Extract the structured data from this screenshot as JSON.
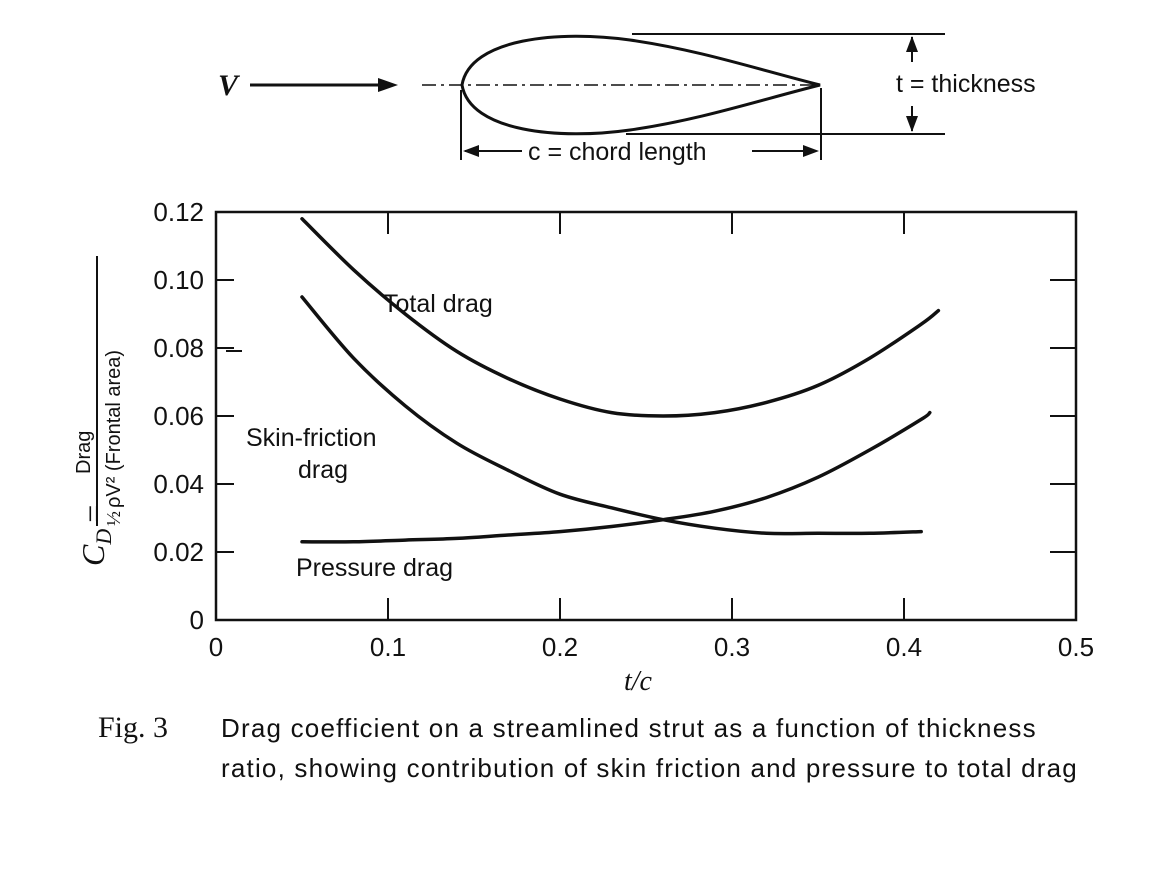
{
  "diagram": {
    "velocity_label": "V",
    "thickness_label": "t = thickness",
    "chord_label": "c = chord length"
  },
  "chart_data": {
    "type": "line",
    "xlabel": "t/c",
    "ylabel_prefix": "C",
    "ylabel_subscript": "D",
    "ylabel_eq": "=",
    "ylabel_numerator": "Drag",
    "ylabel_denominator_half": "½",
    "ylabel_denominator": "ρV² (Frontal area)",
    "xlim": [
      0,
      0.5
    ],
    "ylim": [
      0,
      0.12
    ],
    "x_ticks": [
      0,
      0.1,
      0.2,
      0.3,
      0.4,
      0.5
    ],
    "x_tick_labels": [
      "0",
      "0.1",
      "0.2",
      "0.3",
      "0.4",
      "0.5"
    ],
    "y_ticks": [
      0,
      0.02,
      0.04,
      0.06,
      0.08,
      0.1,
      0.12
    ],
    "y_tick_labels": [
      "0",
      "0.02",
      "0.04",
      "0.06",
      "0.08",
      "0.10",
      "0.12"
    ],
    "grid": false,
    "series": [
      {
        "name": "Total drag",
        "x": [
          0.05,
          0.08,
          0.11,
          0.14,
          0.17,
          0.2,
          0.23,
          0.26,
          0.29,
          0.32,
          0.35,
          0.38,
          0.41,
          0.42
        ],
        "y": [
          0.118,
          0.103,
          0.09,
          0.079,
          0.071,
          0.065,
          0.061,
          0.06,
          0.061,
          0.064,
          0.069,
          0.077,
          0.087,
          0.091
        ]
      },
      {
        "name": "Skin-friction drag",
        "x": [
          0.05,
          0.08,
          0.11,
          0.14,
          0.17,
          0.2,
          0.23,
          0.26,
          0.29,
          0.32,
          0.35,
          0.38,
          0.41
        ],
        "y": [
          0.095,
          0.077,
          0.063,
          0.052,
          0.044,
          0.037,
          0.033,
          0.0295,
          0.027,
          0.0255,
          0.0255,
          0.0255,
          0.026
        ]
      },
      {
        "name": "Pressure drag",
        "x": [
          0.05,
          0.08,
          0.11,
          0.14,
          0.17,
          0.2,
          0.23,
          0.26,
          0.29,
          0.32,
          0.35,
          0.38,
          0.41,
          0.415
        ],
        "y": [
          0.023,
          0.023,
          0.0235,
          0.024,
          0.025,
          0.026,
          0.0275,
          0.0295,
          0.032,
          0.036,
          0.042,
          0.05,
          0.059,
          0.061
        ]
      }
    ],
    "curve_labels": {
      "total": "Total drag",
      "skin_line1": "Skin-friction",
      "skin_line2": "drag",
      "pressure": "Pressure drag"
    }
  },
  "caption": {
    "number": "Fig. 3",
    "text": "Drag coefficient on a streamlined strut as a function of thickness ratio, showing contribution of skin friction and pressure to total drag"
  }
}
